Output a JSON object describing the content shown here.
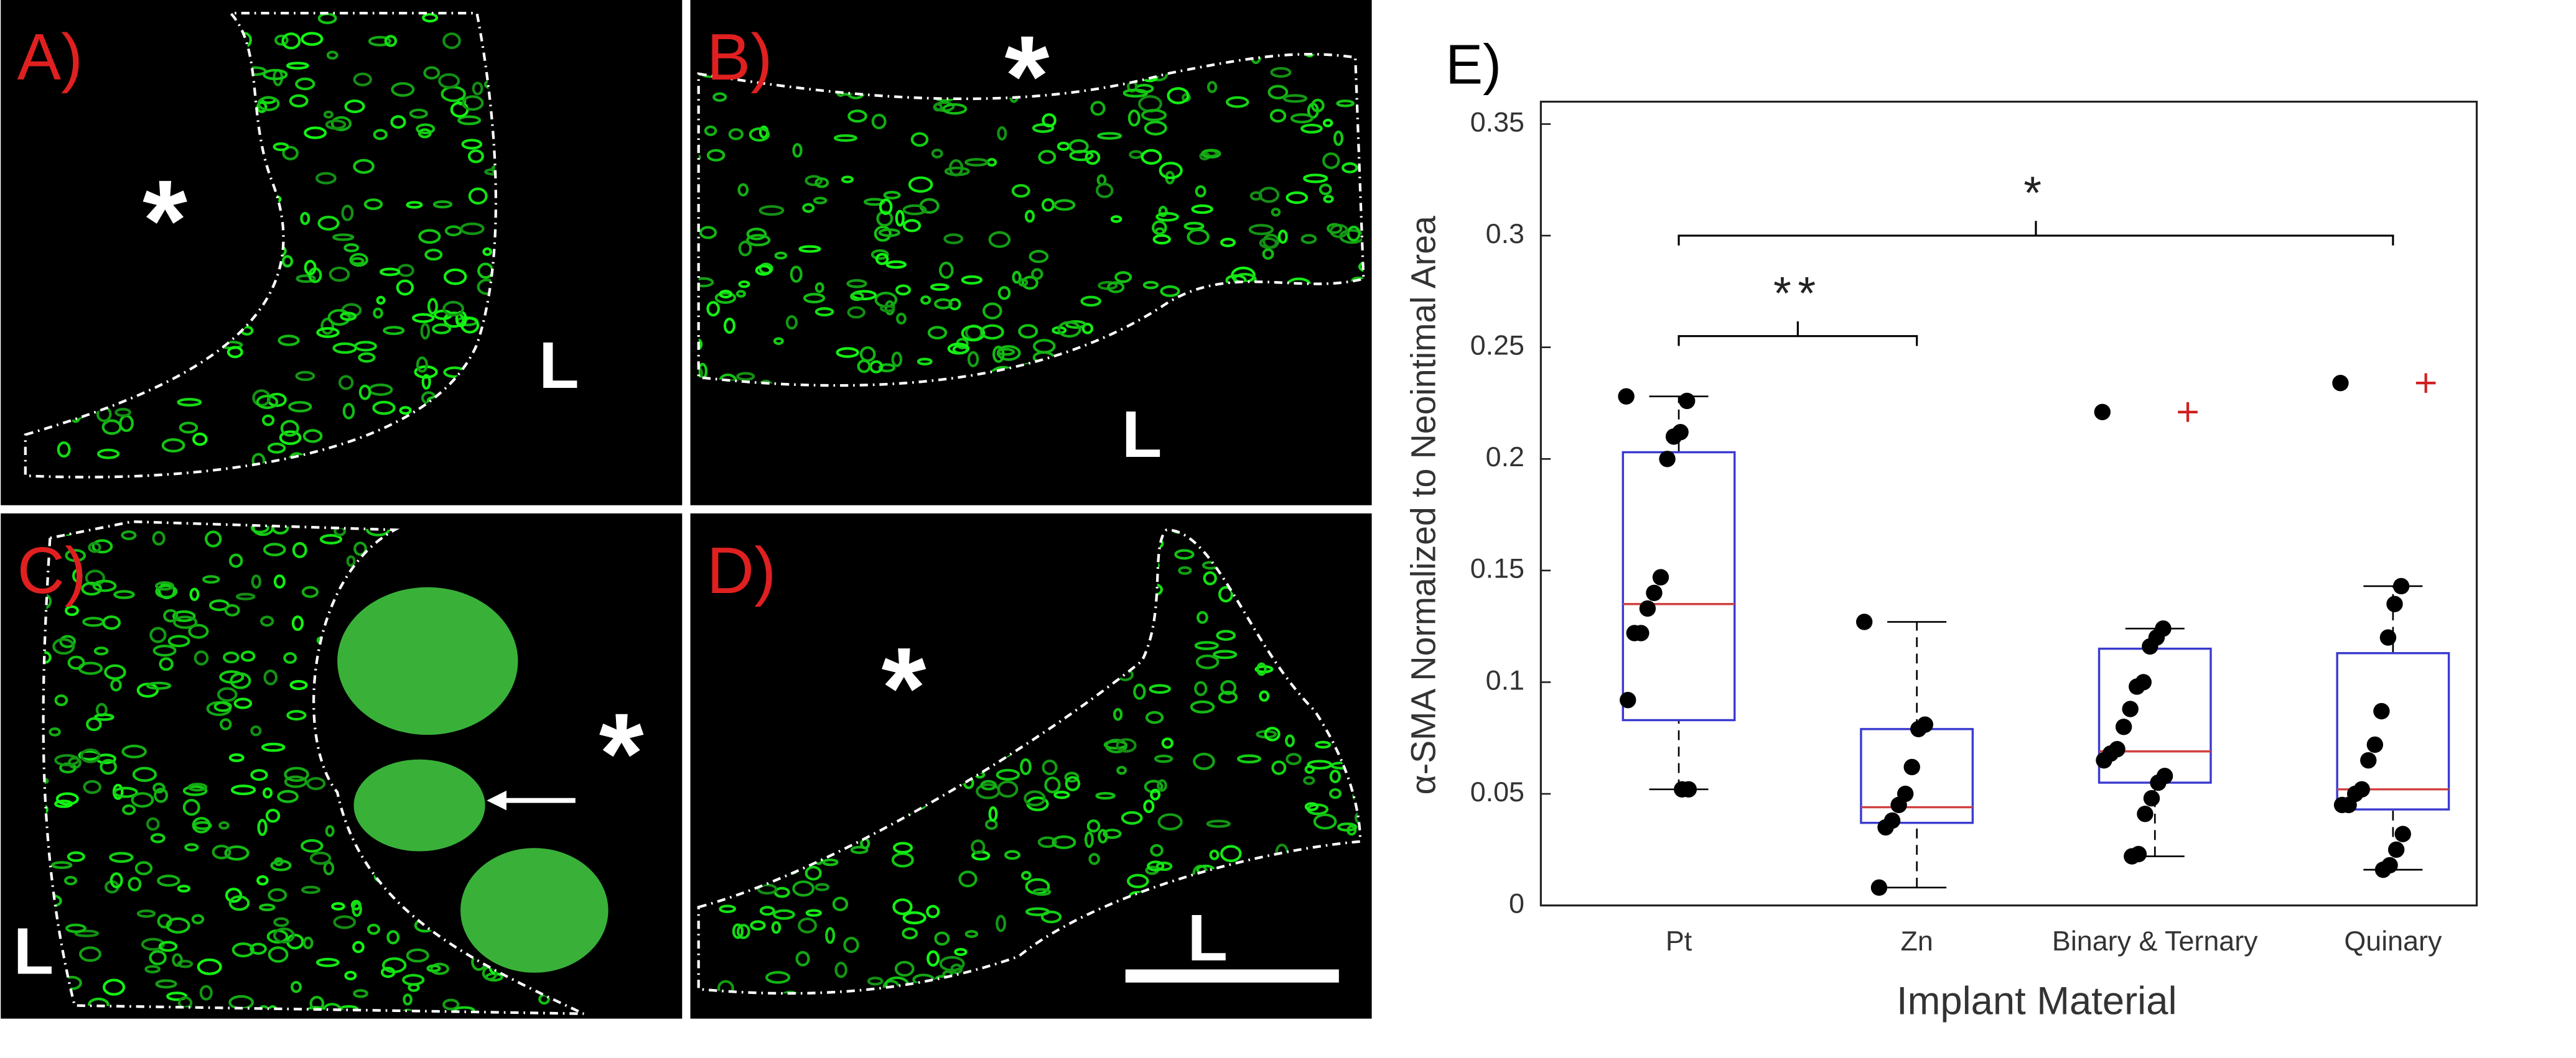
{
  "panels": [
    {
      "label": "A)",
      "texts": [
        "*",
        "L"
      ]
    },
    {
      "label": "B)",
      "texts": [
        "*",
        "L"
      ]
    },
    {
      "label": "C)",
      "texts": [
        "*",
        "L"
      ]
    },
    {
      "label": "D)",
      "texts": [
        "*",
        "L"
      ]
    }
  ],
  "chart_data": {
    "type": "box",
    "title": "E)",
    "y_label": "α-SMA Normalized to Neointimal Area",
    "x_label": "Implant Material",
    "categories": [
      "Pt",
      "Zn",
      "Binary & Ternary",
      "Quinary"
    ],
    "ylim": [
      0,
      0.36
    ],
    "yticks": [
      0,
      0.05,
      0.1,
      0.15,
      0.2,
      0.25,
      0.3,
      0.35
    ],
    "box_color": "#3a3ad0",
    "median_color": "#d04040",
    "outlier_color": "#d02020",
    "point_color": "#000000",
    "series": [
      {
        "whisker_low": 0.052,
        "q1": 0.083,
        "median": 0.135,
        "q3": 0.203,
        "whisker_high": 0.228,
        "outliers": [],
        "points": [
          0.228,
          0.226,
          0.212,
          0.21,
          0.2,
          0.147,
          0.14,
          0.133,
          0.122,
          0.122,
          0.092,
          0.052,
          0.052
        ]
      },
      {
        "whisker_low": 0.008,
        "q1": 0.037,
        "median": 0.044,
        "q3": 0.079,
        "whisker_high": 0.127,
        "outliers": [],
        "points": [
          0.127,
          0.081,
          0.079,
          0.062,
          0.05,
          0.045,
          0.038,
          0.035,
          0.008
        ]
      },
      {
        "whisker_low": 0.022,
        "q1": 0.055,
        "median": 0.069,
        "q3": 0.115,
        "whisker_high": 0.124,
        "outliers": [
          0.221
        ],
        "points": [
          0.221,
          0.124,
          0.12,
          0.116,
          0.1,
          0.098,
          0.088,
          0.08,
          0.07,
          0.068,
          0.065,
          0.058,
          0.055,
          0.048,
          0.041,
          0.023,
          0.022
        ]
      },
      {
        "whisker_low": 0.016,
        "q1": 0.043,
        "median": 0.052,
        "q3": 0.113,
        "whisker_high": 0.143,
        "outliers": [
          0.234
        ],
        "points": [
          0.234,
          0.143,
          0.135,
          0.12,
          0.087,
          0.072,
          0.065,
          0.052,
          0.05,
          0.045,
          0.045,
          0.032,
          0.025,
          0.018,
          0.016
        ]
      }
    ],
    "annotations": [
      {
        "text": "**",
        "from": 0,
        "to": 1,
        "y": 0.255
      },
      {
        "text": "*",
        "from": 0,
        "to": 3,
        "y": 0.3
      }
    ]
  }
}
